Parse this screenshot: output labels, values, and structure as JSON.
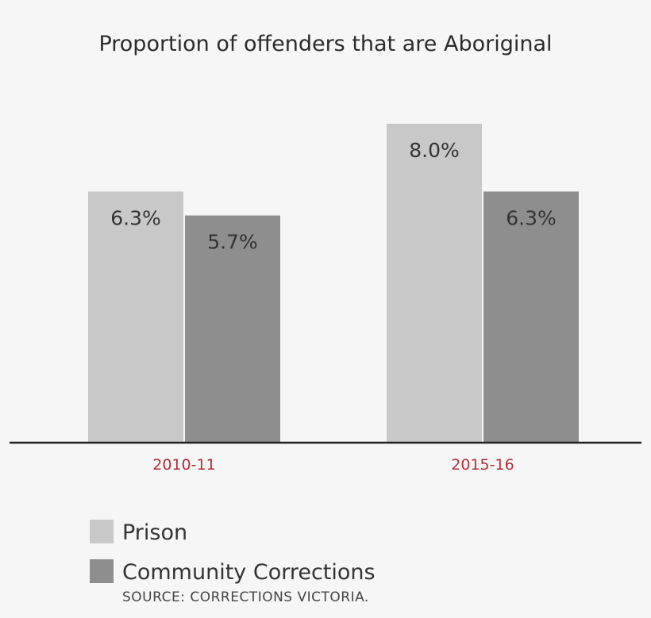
{
  "chart_data": {
    "type": "bar",
    "title": "Proportion of offenders that are Aboriginal",
    "categories": [
      "2010-11",
      "2015-16"
    ],
    "series": [
      {
        "name": "Prison",
        "values": [
          6.3,
          8.0
        ],
        "labels": [
          "6.3%",
          "8.0%"
        ]
      },
      {
        "name": "Community Corrections",
        "values": [
          5.7,
          6.3
        ],
        "labels": [
          "5.7%",
          "6.3%"
        ]
      }
    ],
    "ylim": [
      0,
      10.5
    ],
    "grid": false,
    "legend": "bottom-left",
    "source": "SOURCE: CORRECTIONS VICTORIA."
  },
  "colors": {
    "series": [
      "#c8c8c8",
      "#8f8e8f"
    ],
    "category_label": "#b0303a",
    "axis": "#222222",
    "background": "#f6f6f6"
  }
}
